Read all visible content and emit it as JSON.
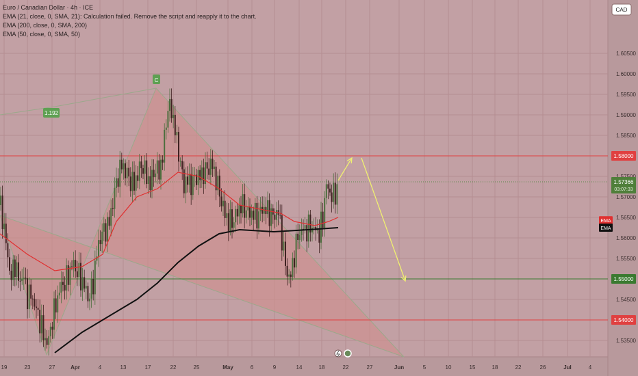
{
  "header": {
    "title": "Euro / Canadian Dollar · 4h · ICE",
    "indicators": [
      "EMA (21, close, 0, SMA, 21): Calculation failed. Remove the script and reapply it to the chart.",
      "EMA (200, close, 0, SMA, 200)",
      "EMA (50, close, 0, SMA, 50)"
    ]
  },
  "currency_badge": "CAD",
  "colors": {
    "background": "#c2a0a4",
    "up_candle": "#4c6e3e",
    "down_candle": "#402222",
    "resistance": "#e04040",
    "support": "#3a7a30",
    "ema_short": "#e03030",
    "ema_long": "#111111",
    "projection": "#f0f070"
  },
  "chart_data": {
    "type": "candlestick",
    "timeframe": "4h",
    "price_axis": {
      "ticks": [
        "1.60500",
        "1.60000",
        "1.59500",
        "1.59000",
        "1.58500",
        "1.58000",
        "1.57500",
        "1.57000",
        "1.56500",
        "1.56000",
        "1.55500",
        "1.55000",
        "1.54500",
        "1.54000",
        "1.53500"
      ],
      "range": [
        1.531,
        1.618
      ]
    },
    "time_axis": {
      "ticks": [
        "19",
        "23",
        "27",
        "Apr",
        "4",
        "13",
        "17",
        "22",
        "25",
        "May",
        "6",
        "9",
        "14",
        "18",
        "22",
        "27",
        "Jun",
        "5",
        "10",
        "15",
        "18",
        "22",
        "26",
        "Jul",
        "4"
      ]
    },
    "levels": [
      {
        "label": "1.58000",
        "price": 1.58,
        "kind": "resistance"
      },
      {
        "label": "1.55000",
        "price": 1.55,
        "kind": "support"
      },
      {
        "label": "1.54000",
        "price": 1.54,
        "kind": "resistance"
      }
    ],
    "current_price": {
      "label": "1.57366",
      "countdown": "03:07:33",
      "price": 1.57366
    },
    "ema_tags": [
      "EMA",
      "EMA"
    ],
    "annotations": [
      {
        "text": "C",
        "kind": "pattern-point"
      },
      {
        "text": "1.192",
        "kind": "ratio"
      }
    ],
    "candle_path": [
      [
        0,
        1.568
      ],
      [
        4,
        1.565
      ],
      [
        10,
        1.557
      ],
      [
        16,
        1.55
      ],
      [
        22,
        1.554
      ],
      [
        28,
        1.549
      ],
      [
        34,
        1.551
      ],
      [
        40,
        1.546
      ],
      [
        46,
        1.546
      ],
      [
        52,
        1.543
      ],
      [
        58,
        1.54
      ],
      [
        64,
        1.536
      ],
      [
        70,
        1.534
      ],
      [
        76,
        1.54
      ],
      [
        82,
        1.544
      ],
      [
        88,
        1.548
      ],
      [
        94,
        1.549
      ],
      [
        100,
        1.551
      ],
      [
        106,
        1.554
      ],
      [
        112,
        1.552
      ],
      [
        118,
        1.55
      ],
      [
        124,
        1.548
      ],
      [
        130,
        1.545
      ],
      [
        136,
        1.549
      ],
      [
        142,
        1.557
      ],
      [
        148,
        1.561
      ],
      [
        154,
        1.562
      ],
      [
        160,
        1.564
      ],
      [
        166,
        1.57
      ],
      [
        172,
        1.575
      ],
      [
        178,
        1.578
      ],
      [
        184,
        1.576
      ],
      [
        190,
        1.574
      ],
      [
        196,
        1.573
      ],
      [
        202,
        1.576
      ],
      [
        208,
        1.578
      ],
      [
        214,
        1.575
      ],
      [
        220,
        1.573
      ],
      [
        226,
        1.577
      ],
      [
        232,
        1.576
      ],
      [
        238,
        1.58
      ],
      [
        244,
        1.591
      ],
      [
        250,
        1.592
      ],
      [
        256,
        1.586
      ],
      [
        262,
        1.58
      ],
      [
        268,
        1.573
      ],
      [
        274,
        1.574
      ],
      [
        280,
        1.573
      ],
      [
        286,
        1.575
      ],
      [
        292,
        1.575
      ],
      [
        298,
        1.576
      ],
      [
        304,
        1.577
      ],
      [
        310,
        1.578
      ],
      [
        316,
        1.574
      ],
      [
        322,
        1.57
      ],
      [
        328,
        1.566
      ],
      [
        334,
        1.564
      ],
      [
        340,
        1.564
      ],
      [
        346,
        1.566
      ],
      [
        352,
        1.568
      ],
      [
        358,
        1.567
      ],
      [
        364,
        1.566
      ],
      [
        370,
        1.566
      ],
      [
        376,
        1.565
      ],
      [
        382,
        1.567
      ],
      [
        388,
        1.567
      ],
      [
        394,
        1.566
      ],
      [
        400,
        1.565
      ],
      [
        406,
        1.567
      ],
      [
        412,
        1.56
      ],
      [
        418,
        1.552
      ],
      [
        424,
        1.55
      ],
      [
        430,
        1.556
      ],
      [
        436,
        1.561
      ],
      [
        442,
        1.562
      ],
      [
        448,
        1.562
      ],
      [
        454,
        1.563
      ],
      [
        460,
        1.562
      ],
      [
        466,
        1.561
      ],
      [
        472,
        1.565
      ],
      [
        476,
        1.573
      ],
      [
        482,
        1.571
      ],
      [
        488,
        1.57
      ],
      [
        494,
        1.573
      ]
    ],
    "ema50": [
      [
        0,
        1.561
      ],
      [
        40,
        1.556
      ],
      [
        80,
        1.552
      ],
      [
        120,
        1.553
      ],
      [
        150,
        1.556
      ],
      [
        170,
        1.564
      ],
      [
        200,
        1.57
      ],
      [
        230,
        1.572
      ],
      [
        260,
        1.576
      ],
      [
        290,
        1.575
      ],
      [
        320,
        1.572
      ],
      [
        350,
        1.568
      ],
      [
        380,
        1.567
      ],
      [
        410,
        1.566
      ],
      [
        430,
        1.564
      ],
      [
        460,
        1.563
      ],
      [
        480,
        1.564
      ],
      [
        494,
        1.565
      ]
    ],
    "ema200": [
      [
        80,
        1.532
      ],
      [
        120,
        1.537
      ],
      [
        160,
        1.541
      ],
      [
        200,
        1.545
      ],
      [
        230,
        1.549
      ],
      [
        260,
        1.554
      ],
      [
        290,
        1.558
      ],
      [
        320,
        1.561
      ],
      [
        350,
        1.562
      ],
      [
        400,
        1.5615
      ],
      [
        450,
        1.562
      ],
      [
        494,
        1.5625
      ]
    ],
    "triangle": [
      [
        0,
        1.5655
      ],
      [
        68,
        1.5315
      ],
      [
        228,
        1.5965
      ],
      [
        590,
        1.531
      ]
    ],
    "prior_leg": [
      [
        0,
        1.59
      ],
      [
        80,
        1.592
      ],
      [
        228,
        1.5965
      ]
    ],
    "projection": [
      [
        [
          494,
          1.574
        ],
        [
          514,
          1.5795
        ]
      ],
      [
        [
          528,
          1.5795
        ],
        [
          592,
          1.5495
        ]
      ]
    ]
  }
}
